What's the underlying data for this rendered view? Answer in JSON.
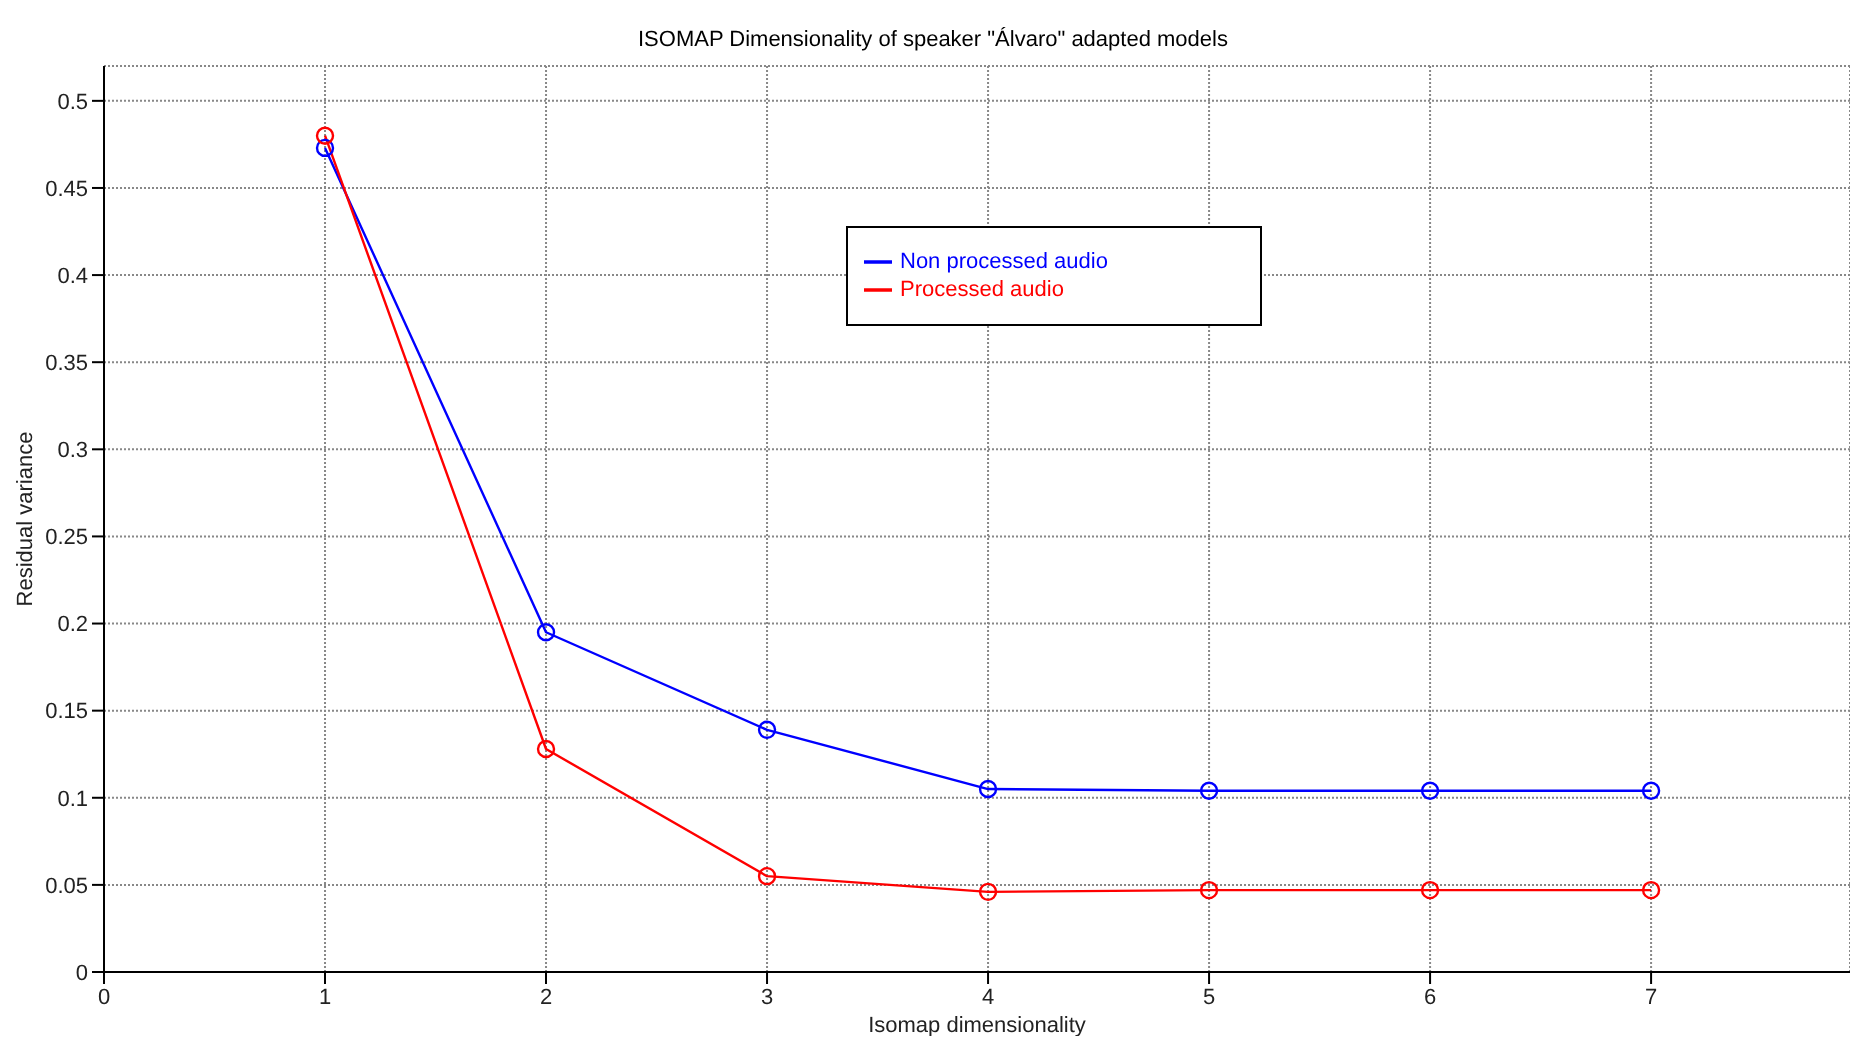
{
  "chart_data": {
    "type": "line",
    "title": "ISOMAP Dimensionality of speaker \"Álvaro\" adapted models",
    "xlabel": "Isomap dimensionality",
    "ylabel": "Residual variance",
    "x": [
      1,
      2,
      3,
      4,
      5,
      6,
      7
    ],
    "series": [
      {
        "name": "Non processed audio",
        "color": "#0000ff",
        "values": [
          0.473,
          0.195,
          0.139,
          0.105,
          0.104,
          0.104,
          0.104
        ]
      },
      {
        "name": "Processed audio",
        "color": "#ff0000",
        "values": [
          0.48,
          0.128,
          0.055,
          0.046,
          0.047,
          0.047,
          0.047
        ]
      }
    ],
    "xlim": [
      0,
      7.9
    ],
    "xticks": [
      0,
      1,
      2,
      3,
      4,
      5,
      6,
      7
    ],
    "ylim": [
      0,
      0.52
    ],
    "yticks": [
      0,
      0.05,
      0.1,
      0.15,
      0.2,
      0.25,
      0.3,
      0.35,
      0.4,
      0.45,
      0.5
    ],
    "grid": true,
    "legend": "top",
    "marker": "circle",
    "line_style": "solid"
  }
}
